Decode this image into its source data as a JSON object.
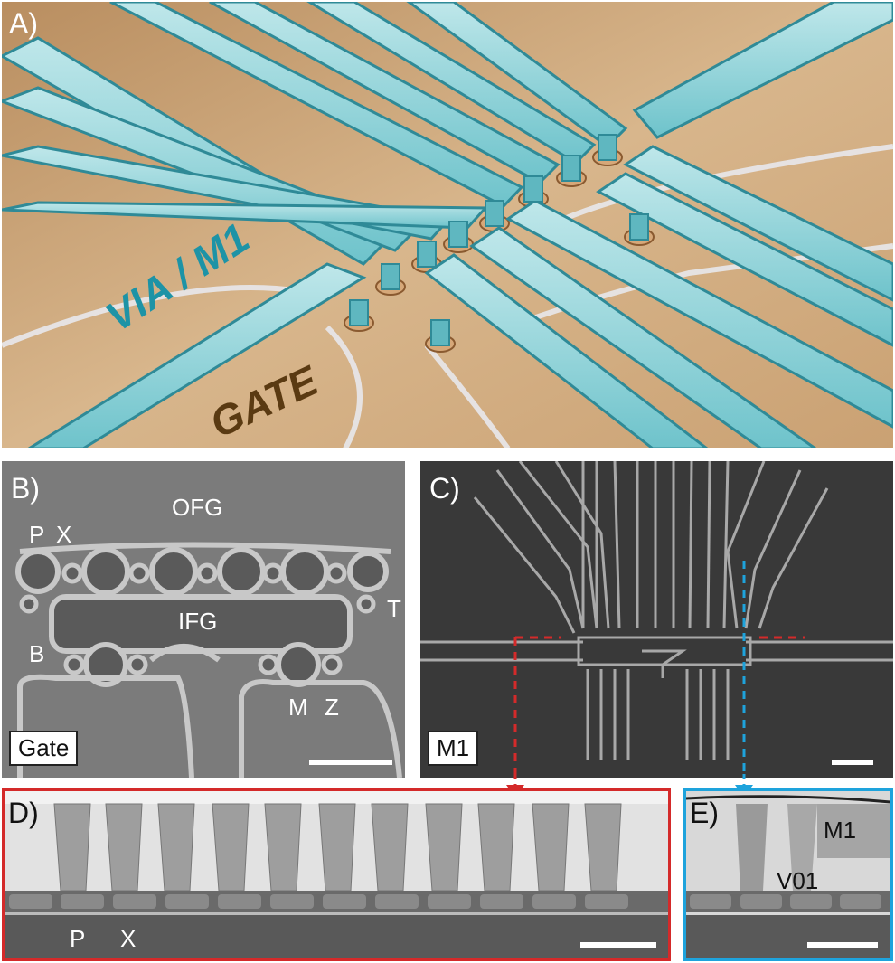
{
  "panels": {
    "a": {
      "label": "A)",
      "layer_top": "VIA / M1",
      "layer_bottom": "GATE"
    },
    "b": {
      "label": "B)",
      "tag": "Gate",
      "labels": {
        "ofg": "OFG",
        "p": "P",
        "x": "X",
        "ifg": "IFG",
        "t": "T",
        "b": "B",
        "m": "M",
        "z": "Z"
      }
    },
    "c": {
      "label": "C)",
      "tag": "M1"
    },
    "d": {
      "label": "D)",
      "labels": {
        "p": "P",
        "x": "X"
      }
    },
    "e": {
      "label": "E)",
      "labels": {
        "m1": "M1",
        "v01": "V01"
      }
    }
  },
  "colors": {
    "metal_cyan": "#5fb7c0",
    "gate_tan": "#c9a276",
    "gate_text": "#5a3a12",
    "via_text": "#1d93a6",
    "arrow_red": "#d42a2a",
    "arrow_blue": "#1ea3dc",
    "frame_red": "#d42a2a",
    "frame_blue": "#1ea3dc"
  }
}
